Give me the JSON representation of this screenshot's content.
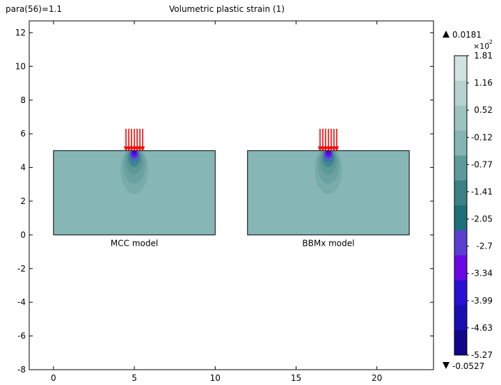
{
  "header": {
    "param_label": "para(56)=1.1",
    "title": "Volumetric plastic strain (1)"
  },
  "chart_data": {
    "type": "heatmap",
    "title": "Volumetric plastic strain (1)",
    "xlim": [
      -1.5,
      23.5
    ],
    "ylim": [
      -8,
      12.7
    ],
    "x_ticks": [
      0,
      5,
      10,
      15,
      20
    ],
    "y_ticks": [
      12,
      10,
      8,
      6,
      4,
      2,
      0,
      -2,
      -4,
      -6,
      -8
    ],
    "grid": false,
    "domains": [
      {
        "label": "MCC model",
        "x": [
          0,
          10
        ],
        "y": [
          0,
          5
        ],
        "load_center_x": 5
      },
      {
        "label": "BBMx model",
        "x": [
          12,
          22
        ],
        "y": [
          0,
          5
        ],
        "load_center_x": 17
      }
    ],
    "colorbar": {
      "max_label": "0.0181",
      "min_label": "-0.0527",
      "multiplier": "×10",
      "multiplier_exp": "-2",
      "ticks": [
        "1.81",
        "1.16",
        "0.52",
        "-0.12",
        "-0.77",
        "-1.41",
        "-2.05",
        "-2.7",
        "-3.34",
        "-3.99",
        "-4.63",
        "-5.27"
      ],
      "colors": [
        "#cfe3e1",
        "#b6d3d1",
        "#9dc3c1",
        "#85b5b2",
        "#5c9b9a",
        "#3a8284",
        "#1d7078",
        "#5a3fd0",
        "#6a08e6",
        "#2a10d2",
        "#1a0eb0",
        "#10068a"
      ]
    },
    "contour_colors": {
      "background": "#86b7b5",
      "level1": "#78acab",
      "level2": "#6ba2a1",
      "level3": "#5d9798",
      "level4": "#3d8a8b",
      "level5": "#4a6bc0",
      "level6": "#5a3fd0",
      "level7": "#6a08e6",
      "core": "#2a10d2"
    },
    "load_color": "#ff0000"
  }
}
